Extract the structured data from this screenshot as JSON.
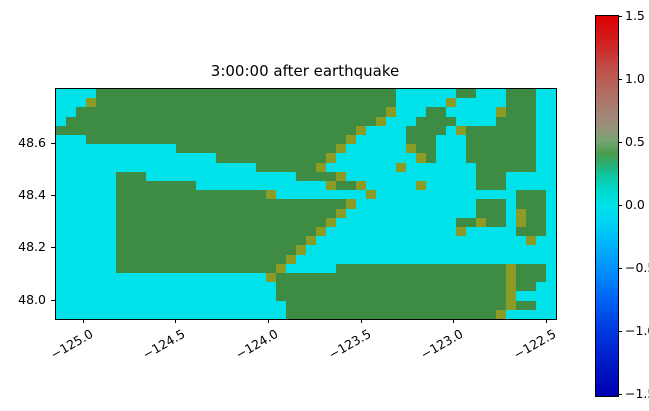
{
  "figure": {
    "title": "3:00:00 after earthquake"
  },
  "chart_data": {
    "type": "heatmap",
    "title": "3:00:00 after earthquake",
    "xlabel": "",
    "ylabel": "",
    "grid_lines": false,
    "legend_position": "right-colorbar",
    "xlim": [
      -125.15,
      -122.45
    ],
    "ylim": [
      47.93,
      48.81
    ],
    "x_ticks": {
      "values": [
        -125.0,
        -124.5,
        -124.0,
        -123.5,
        -123.0,
        -122.5
      ],
      "labels": [
        "−125.0",
        "−124.5",
        "−124.0",
        "−123.5",
        "−123.0",
        "−122.5"
      ]
    },
    "y_ticks": {
      "values": [
        48.0,
        48.2,
        48.4,
        48.6
      ],
      "labels": [
        "48.0",
        "48.2",
        "48.4",
        "48.6"
      ]
    },
    "grid": {
      "cols": 50,
      "rows": 25,
      "cell_key": {
        ".": {
          "value": 0.0,
          "color": "#00e2ea",
          "meaning": "water, amplitude ~0"
        },
        "G": {
          "value": 0.42,
          "color": "#3e8c43",
          "meaning": "land"
        },
        "o": {
          "value": 0.58,
          "color": "#8a9c26",
          "meaning": "shoreline / mixed cell"
        }
      },
      "rows_encoded": [
        "....GGGGGGGGGGGGGGGGGGGGGGGGGGGGGG......GG...GGG..",
        "...oGGGGGGGGGGGGGGGGGGGGGGGGGGGGGG.....o.....GGG..",
        "..GGGGGGGGGGGGGGGGGGGGGGGGGGGGGGGo...GG.....oGGG..",
        ".GGGGGGGGGGGGGGGGGGGGGGGGGGGGGGGo...GGGG....GGGG..",
        "GGGGGGGGGGGGGGGGGGGGGGGGGGGGGGo....GGGG.oGGGGGGG..",
        "...GGGGGGGGGGGGGGGGGGGGGGGGGGo.....GGG...GGGGGGG..",
        "............GGGGGGGGGGGGGGGGo......oGG...GGGGGGG..",
        "................GGGGGGGGGGGo........oG...GGGGGGG..",
        "....................GGGGGGo.......o.......GGGGGG..",
        "......GGG...............GGGGo.............GGG.....",
        "......GGGGGGGG.............oGGo.....o.....GGG.....",
        "......GGGGGGGGGGGGGGGo.........o..............GGG.",
        "......GGGGGGGGGGGGGGGGGGGGGGGo............GGG.GGG.",
        "......GGGGGGGGGGGGGGGGGGGGGGo.............GGG.oGG.",
        "......GGGGGGGGGGGGGGGGGGGGGo............GGoGG.oGG.",
        "......GGGGGGGGGGGGGGGGGGGGo.............o.....GGG.",
        "......GGGGGGGGGGGGGGGGGGGo.....................o..",
        "......GGGGGGGGGGGGGGGGGGo.........................",
        "......GGGGGGGGGGGGGGGGGo..........................",
        "......GGGGGGGGGGGGGGGGo.....GGGGGGGGGGGGGGGGGoGGG.",
        ".....................oGGGGGGGGGGGGGGGGGGGGGGGoGGG.",
        "......................GGGGGGGGGGGGGGGGGGGGGGGoGG..",
        "......................GGGGGGGGGGGGGGGGGGGGGGGo....",
        ".......................GGGGGGGGGGGGGGGGGGGGGGoGG..",
        ".......................GGGGGGGGGGGGGGGGGGGGGo....."
      ]
    },
    "colorbar": {
      "vmin": -1.5,
      "vmax": 1.5,
      "ticks": {
        "values": [
          1.5,
          1.0,
          0.5,
          0.0,
          -0.5,
          -1.0,
          -1.5
        ],
        "labels": [
          "1.5",
          "1.0",
          "0.5",
          "0.0",
          "−0.5",
          "−1.0",
          "−1.5"
        ]
      },
      "gradient_stops": [
        {
          "at": 0.0,
          "color": "#dd0000"
        },
        {
          "at": 0.07,
          "color": "#d02020"
        },
        {
          "at": 0.13,
          "color": "#c24a45"
        },
        {
          "at": 0.2,
          "color": "#b26c62"
        },
        {
          "at": 0.27,
          "color": "#a08878"
        },
        {
          "at": 0.3,
          "color": "#93957a"
        },
        {
          "at": 0.33,
          "color": "#75a472"
        },
        {
          "at": 0.36,
          "color": "#4b9b4e"
        },
        {
          "at": 0.39,
          "color": "#2bad72"
        },
        {
          "at": 0.42,
          "color": "#0fc6a0"
        },
        {
          "at": 0.46,
          "color": "#00d9cd"
        },
        {
          "at": 0.5,
          "color": "#00e2ea"
        },
        {
          "at": 0.55,
          "color": "#00d1f4"
        },
        {
          "at": 0.6,
          "color": "#00b3fb"
        },
        {
          "at": 0.67,
          "color": "#008ffe"
        },
        {
          "at": 0.75,
          "color": "#0061f2"
        },
        {
          "at": 0.83,
          "color": "#0038df"
        },
        {
          "at": 0.92,
          "color": "#0018c6"
        },
        {
          "at": 1.0,
          "color": "#0000b0"
        }
      ]
    }
  }
}
